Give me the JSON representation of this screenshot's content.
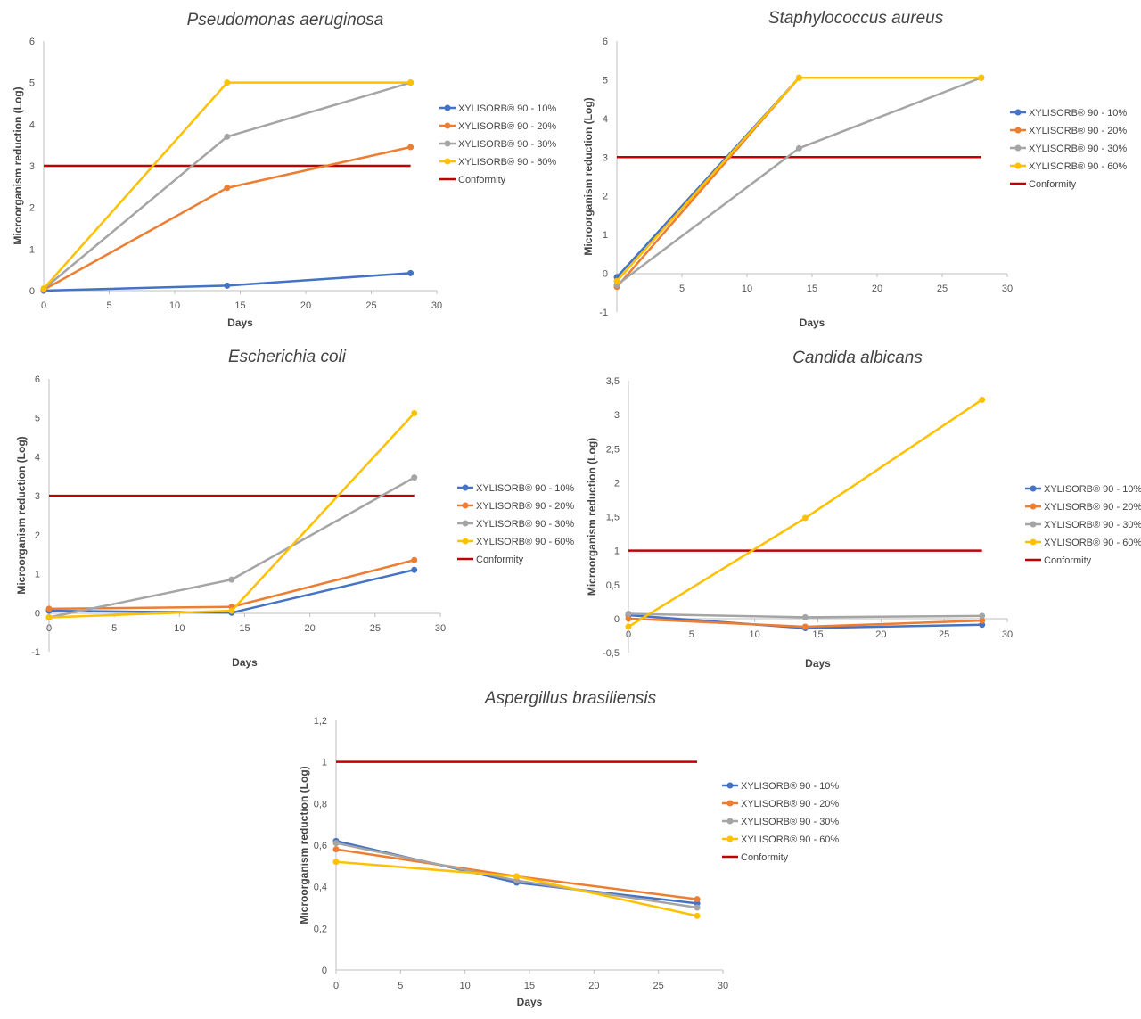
{
  "chart_data": [
    {
      "type": "line",
      "title": "Pseudomonas aeruginosa",
      "xlabel": "Days",
      "ylabel": "Microorganism reduction (Log)",
      "xlim": [
        0,
        30
      ],
      "ylim": [
        0,
        6
      ],
      "xticks": [
        "0",
        "5",
        "10",
        "15",
        "20",
        "25",
        "30"
      ],
      "yticks": [
        "0",
        "1",
        "2",
        "3",
        "4",
        "5",
        "6"
      ],
      "x": [
        0,
        14,
        28
      ],
      "series": [
        {
          "name": "XYLISORB® 90 - 10%",
          "color": "#4472C4",
          "values": [
            0,
            0.12,
            0.42
          ]
        },
        {
          "name": "XYLISORB® 90 - 20%",
          "color": "#ED7D31",
          "values": [
            0.02,
            2.47,
            3.45
          ]
        },
        {
          "name": "XYLISORB® 90 - 30%",
          "color": "#A5A5A5",
          "values": [
            0.04,
            3.7,
            5.0
          ]
        },
        {
          "name": "XYLISORB® 90 - 60%",
          "color": "#FFC000",
          "values": [
            0.05,
            5.0,
            5.0
          ]
        }
      ],
      "conformity": {
        "name": "Conformity",
        "color": "#C00000",
        "value": 3,
        "x": [
          0,
          28
        ]
      },
      "legend": "right"
    },
    {
      "type": "line",
      "title": "Staphylococcus aureus",
      "xlabel": "Days",
      "ylabel": "Microorganism reduction (Log)",
      "xlim": [
        0,
        30
      ],
      "ylim": [
        -1,
        6
      ],
      "xticks": [
        "5",
        "10",
        "15",
        "20",
        "25",
        "30"
      ],
      "yticks": [
        "-1",
        "0",
        "1",
        "2",
        "3",
        "4",
        "5",
        "6"
      ],
      "x": [
        0,
        14,
        28
      ],
      "series": [
        {
          "name": "XYLISORB® 90 - 10%",
          "color": "#4472C4",
          "values": [
            -0.1,
            5.05,
            5.05
          ]
        },
        {
          "name": "XYLISORB® 90 - 20%",
          "color": "#ED7D31",
          "values": [
            -0.35,
            5.05,
            5.05
          ]
        },
        {
          "name": "XYLISORB® 90 - 30%",
          "color": "#A5A5A5",
          "values": [
            -0.3,
            3.23,
            5.05
          ]
        },
        {
          "name": "XYLISORB® 90 - 60%",
          "color": "#FFC000",
          "values": [
            -0.2,
            5.05,
            5.05
          ]
        }
      ],
      "conformity": {
        "name": "Conformity",
        "color": "#C00000",
        "value": 3,
        "x": [
          0,
          28
        ]
      },
      "legend": "right"
    },
    {
      "type": "line",
      "title": "Escherichia coli",
      "xlabel": "Days",
      "ylabel": "Microorganism reduction (Log)",
      "xlim": [
        0,
        30
      ],
      "ylim": [
        -1,
        6
      ],
      "xticks": [
        "0",
        "5",
        "10",
        "15",
        "20",
        "25",
        "30"
      ],
      "yticks": [
        "-1",
        "0",
        "1",
        "2",
        "3",
        "4",
        "5",
        "6"
      ],
      "x": [
        0,
        14,
        28
      ],
      "series": [
        {
          "name": "XYLISORB® 90 - 10%",
          "color": "#4472C4",
          "values": [
            0.05,
            0.0,
            1.1
          ]
        },
        {
          "name": "XYLISORB® 90 - 20%",
          "color": "#ED7D31",
          "values": [
            0.1,
            0.15,
            1.35
          ]
        },
        {
          "name": "XYLISORB® 90 - 30%",
          "color": "#A5A5A5",
          "values": [
            -0.12,
            0.85,
            3.47
          ]
        },
        {
          "name": "XYLISORB® 90 - 60%",
          "color": "#FFC000",
          "values": [
            -0.12,
            0.05,
            5.12
          ]
        }
      ],
      "conformity": {
        "name": "Conformity",
        "color": "#C00000",
        "value": 3,
        "x": [
          0,
          28
        ]
      },
      "legend": "right"
    },
    {
      "type": "line",
      "title": "Candida albicans",
      "xlabel": "Days",
      "ylabel": "Microorganism reduction (Log)",
      "xlim": [
        0,
        30
      ],
      "ylim": [
        -0.5,
        3.5
      ],
      "xticks": [
        "0",
        "5",
        "10",
        "15",
        "20",
        "25",
        "30"
      ],
      "yticks": [
        "-0,5",
        "0",
        "0,5",
        "1",
        "1,5",
        "2",
        "2,5",
        "3",
        "3,5"
      ],
      "x": [
        0,
        14,
        28
      ],
      "series": [
        {
          "name": "XYLISORB® 90 - 10%",
          "color": "#4472C4",
          "values": [
            0.05,
            -0.14,
            -0.09
          ]
        },
        {
          "name": "XYLISORB® 90 - 20%",
          "color": "#ED7D31",
          "values": [
            0.0,
            -0.12,
            -0.03
          ]
        },
        {
          "name": "XYLISORB® 90 - 30%",
          "color": "#A5A5A5",
          "values": [
            0.07,
            0.02,
            0.04
          ]
        },
        {
          "name": "XYLISORB® 90 - 60%",
          "color": "#FFC000",
          "values": [
            -0.12,
            1.48,
            3.22
          ]
        }
      ],
      "conformity": {
        "name": "Conformity",
        "color": "#C00000",
        "value": 1,
        "x": [
          0,
          28
        ]
      },
      "legend": "right"
    },
    {
      "type": "line",
      "title": "Aspergillus brasiliensis",
      "xlabel": "Days",
      "ylabel": "Microorganism reduction (Log)",
      "xlim": [
        0,
        30
      ],
      "ylim": [
        0,
        1.2
      ],
      "xticks": [
        "0",
        "5",
        "10",
        "15",
        "20",
        "25",
        "30"
      ],
      "yticks": [
        "0",
        "0,2",
        "0,4",
        "0,6",
        "0,8",
        "1",
        "1,2"
      ],
      "x": [
        0,
        14,
        28
      ],
      "series": [
        {
          "name": "XYLISORB® 90 - 10%",
          "color": "#4472C4",
          "values": [
            0.62,
            0.42,
            0.32
          ]
        },
        {
          "name": "XYLISORB® 90 - 20%",
          "color": "#ED7D31",
          "values": [
            0.58,
            0.45,
            0.34
          ]
        },
        {
          "name": "XYLISORB® 90 - 30%",
          "color": "#A5A5A5",
          "values": [
            0.61,
            0.43,
            0.3
          ]
        },
        {
          "name": "XYLISORB® 90 - 60%",
          "color": "#FFC000",
          "values": [
            0.52,
            0.45,
            0.26
          ]
        }
      ],
      "conformity": {
        "name": "Conformity",
        "color": "#C00000",
        "value": 1,
        "x": [
          0,
          28
        ]
      },
      "legend": "right"
    }
  ]
}
